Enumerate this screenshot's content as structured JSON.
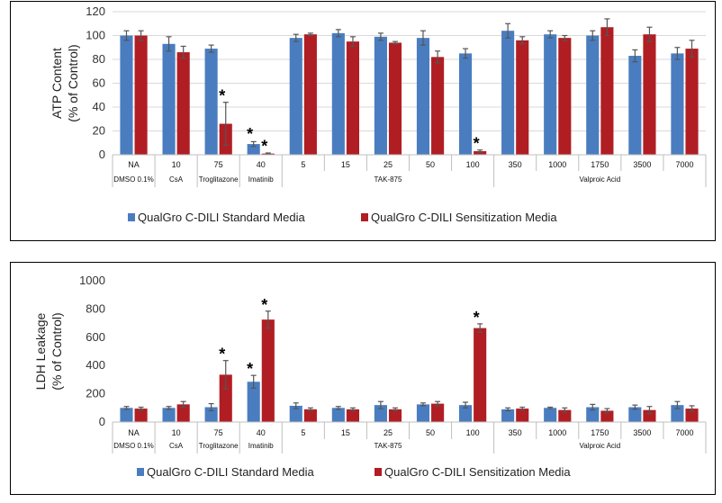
{
  "colors": {
    "standard": "#4a7dbf",
    "sensitization": "#b01e23",
    "error_bar": "#555555",
    "grid": "#d9d9d9"
  },
  "chart_data": [
    {
      "type": "bar",
      "ylabel_line1": "ATP Content",
      "ylabel_line2": "(% of Control)",
      "ylim": [
        0,
        120
      ],
      "yticks": [
        0,
        20,
        40,
        60,
        80,
        100,
        120
      ],
      "grid": true,
      "legend_position": "bottom",
      "categories": [
        "NA",
        "10",
        "75",
        "40",
        "5",
        "15",
        "25",
        "50",
        "100",
        "350",
        "1000",
        "1750",
        "3500",
        "7000"
      ],
      "groups": [
        {
          "label": "DMSO 0.1%",
          "start": 0,
          "end": 0
        },
        {
          "label": "CsA",
          "start": 1,
          "end": 1
        },
        {
          "label": "Troglitazone",
          "start": 2,
          "end": 2
        },
        {
          "label": "Imatinib",
          "start": 3,
          "end": 3
        },
        {
          "label": "TAK-875",
          "start": 4,
          "end": 8
        },
        {
          "label": "Valproic Acid",
          "start": 9,
          "end": 13
        }
      ],
      "series": [
        {
          "name": "QualGro C-DILI Standard Media",
          "values": [
            100,
            93,
            89,
            9,
            98,
            102,
            99,
            98,
            85,
            104,
            101,
            100,
            83,
            85
          ],
          "errors": [
            4,
            6,
            3,
            2,
            3,
            3,
            3,
            6,
            4,
            6,
            3,
            4,
            5,
            5
          ]
        },
        {
          "name": "QualGro C-DILI  Sensitization Media",
          "values": [
            100,
            86,
            26,
            1,
            101,
            95,
            94,
            82,
            3,
            96,
            98,
            107,
            101,
            89
          ],
          "errors": [
            4,
            5,
            18,
            0.5,
            1,
            4,
            1,
            5,
            1,
            3,
            2,
            7,
            6,
            7
          ]
        }
      ],
      "annotations": [
        {
          "label": "*",
          "category_index": 2,
          "series_index": 1,
          "value": 44
        },
        {
          "label": "*",
          "category_index": 3,
          "series_index": 0,
          "value": 12
        },
        {
          "label": "*",
          "category_index": 3,
          "series_index": 1,
          "value": 2
        },
        {
          "label": "*",
          "category_index": 8,
          "series_index": 1,
          "value": 4
        }
      ]
    },
    {
      "type": "bar",
      "ylabel_line1": "LDH Leakage",
      "ylabel_line2": "(% of Control)",
      "ylim": [
        0,
        1000
      ],
      "yticks": [
        0,
        200,
        400,
        600,
        800,
        1000
      ],
      "grid": false,
      "legend_position": "bottom",
      "categories": [
        "NA",
        "10",
        "75",
        "40",
        "5",
        "15",
        "25",
        "50",
        "100",
        "350",
        "1000",
        "1750",
        "3500",
        "7000"
      ],
      "groups": [
        {
          "label": "DMSO 0.1%",
          "start": 0,
          "end": 0
        },
        {
          "label": "CsA",
          "start": 1,
          "end": 1
        },
        {
          "label": "Troglitazone",
          "start": 2,
          "end": 2
        },
        {
          "label": "Imatinib",
          "start": 3,
          "end": 3
        },
        {
          "label": "TAK-875",
          "start": 4,
          "end": 8
        },
        {
          "label": "Valproic Acid",
          "start": 9,
          "end": 13
        }
      ],
      "series": [
        {
          "name": "QualGro C-DILI Standard Media",
          "values": [
            100,
            100,
            105,
            285,
            115,
            100,
            120,
            125,
            120,
            90,
            100,
            105,
            105,
            120
          ],
          "errors": [
            10,
            10,
            25,
            45,
            20,
            10,
            25,
            10,
            20,
            10,
            5,
            20,
            15,
            25
          ]
        },
        {
          "name": "QualGro C-DILI  Sensitization Media",
          "values": [
            95,
            125,
            335,
            725,
            90,
            90,
            90,
            130,
            665,
            95,
            85,
            80,
            85,
            95
          ],
          "errors": [
            10,
            20,
            100,
            60,
            10,
            10,
            10,
            15,
            30,
            10,
            15,
            15,
            25,
            20
          ]
        }
      ],
      "annotations": [
        {
          "label": "*",
          "category_index": 2,
          "series_index": 1,
          "value": 435
        },
        {
          "label": "*",
          "category_index": 3,
          "series_index": 0,
          "value": 330
        },
        {
          "label": "*",
          "category_index": 3,
          "series_index": 1,
          "value": 785
        },
        {
          "label": "*",
          "category_index": 8,
          "series_index": 1,
          "value": 695
        }
      ]
    }
  ]
}
